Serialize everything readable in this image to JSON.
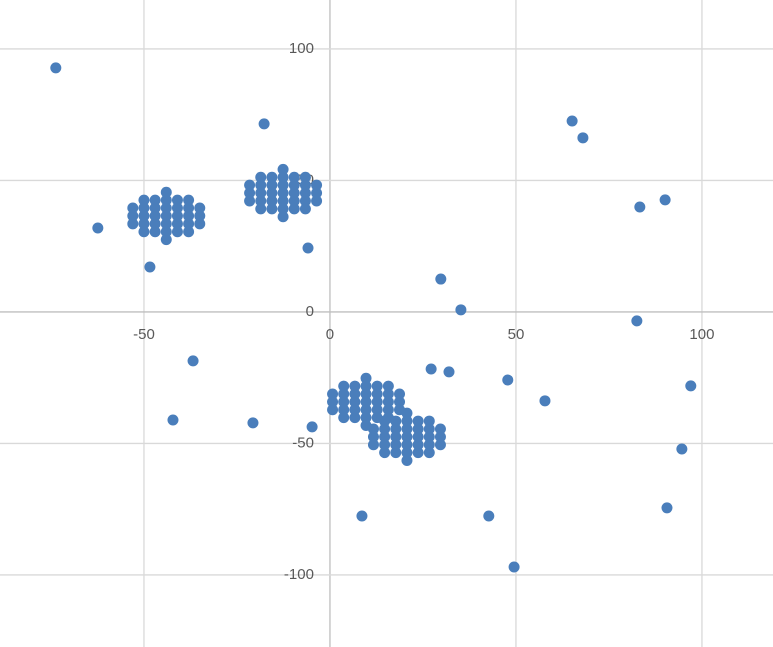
{
  "chart_data": {
    "type": "scatter",
    "color": "#4a7ebb",
    "xlim": [
      -88.7,
      119.1
    ],
    "ylim": [
      -127.4,
      118.6
    ],
    "xticks": [
      -50,
      0,
      50,
      100
    ],
    "yticks": [
      -100,
      -50,
      0,
      50,
      100
    ],
    "grid": true,
    "x": [
      -44,
      -50,
      -47,
      -44,
      -41,
      -38,
      -53,
      -50,
      -47,
      -44,
      -41,
      -38,
      -35,
      -53,
      -50,
      -47,
      -44,
      -41,
      -38,
      -35,
      -53,
      -50,
      -47,
      -44,
      -41,
      -38,
      -35,
      -50,
      -47,
      -44,
      -41,
      -38,
      -44,
      -12.6,
      -18.6,
      -15.6,
      -12.6,
      -9.6,
      -6.6,
      -21.6,
      -18.6,
      -15.6,
      -12.6,
      -9.6,
      -6.6,
      -3.6,
      -21.6,
      -18.6,
      -15.6,
      -12.6,
      -9.6,
      -6.6,
      -3.6,
      -21.6,
      -18.6,
      -15.6,
      -12.6,
      -9.6,
      -6.6,
      -3.6,
      -18.6,
      -15.6,
      -12.6,
      -9.6,
      -6.6,
      -12.6,
      9.7,
      3.7,
      6.7,
      9.7,
      12.7,
      15.7,
      0.7,
      3.7,
      6.7,
      9.7,
      12.7,
      15.7,
      18.7,
      0.7,
      3.7,
      6.7,
      9.7,
      12.7,
      15.7,
      18.7,
      0.7,
      3.7,
      6.7,
      9.7,
      12.7,
      15.7,
      18.7,
      3.7,
      6.7,
      9.7,
      12.7,
      15.7,
      9.7,
      20.7,
      14.7,
      17.7,
      20.7,
      23.7,
      26.7,
      11.7,
      14.7,
      17.7,
      20.7,
      23.7,
      26.7,
      29.7,
      11.7,
      14.7,
      17.7,
      20.7,
      23.7,
      26.7,
      29.7,
      11.7,
      14.7,
      17.7,
      20.7,
      23.7,
      26.7,
      29.7,
      14.7,
      17.7,
      20.7,
      23.7,
      26.7,
      20.7,
      -73.7,
      -17.7,
      -62.4,
      -48.4,
      -5.9,
      -36.8,
      -42.2,
      -20.7,
      -4.8,
      8.6,
      29.8,
      35.2,
      27.2,
      32.0,
      47.8,
      57.8,
      42.7,
      49.5,
      65.1,
      68.0,
      83.3,
      90.1,
      82.5,
      97.0,
      94.6,
      90.6
    ],
    "values": [
      27.5,
      30.5,
      30.5,
      30.5,
      30.5,
      30.5,
      33.5,
      33.5,
      33.5,
      33.5,
      33.5,
      33.5,
      33.5,
      36.5,
      36.5,
      36.5,
      36.5,
      36.5,
      36.5,
      36.5,
      39.5,
      39.5,
      39.5,
      39.5,
      39.5,
      39.5,
      39.5,
      42.5,
      42.5,
      42.5,
      42.5,
      42.5,
      45.5,
      36.2,
      39.2,
      39.2,
      39.2,
      39.2,
      39.2,
      42.2,
      42.2,
      42.2,
      42.2,
      42.2,
      42.2,
      42.2,
      45.2,
      45.2,
      45.2,
      45.2,
      45.2,
      45.2,
      45.2,
      48.2,
      48.2,
      48.2,
      48.2,
      48.2,
      48.2,
      48.2,
      51.2,
      51.2,
      51.2,
      51.2,
      51.2,
      54.2,
      -43.2,
      -40.2,
      -40.2,
      -40.2,
      -40.2,
      -40.2,
      -37.2,
      -37.2,
      -37.2,
      -37.2,
      -37.2,
      -37.2,
      -37.2,
      -34.2,
      -34.2,
      -34.2,
      -34.2,
      -34.2,
      -34.2,
      -34.2,
      -31.2,
      -31.2,
      -31.2,
      -31.2,
      -31.2,
      -31.2,
      -31.2,
      -28.2,
      -28.2,
      -28.2,
      -28.2,
      -28.2,
      -25.2,
      -56.5,
      -53.5,
      -53.5,
      -53.5,
      -53.5,
      -53.5,
      -50.5,
      -50.5,
      -50.5,
      -50.5,
      -50.5,
      -50.5,
      -50.5,
      -47.5,
      -47.5,
      -47.5,
      -47.5,
      -47.5,
      -47.5,
      -47.5,
      -44.5,
      -44.5,
      -44.5,
      -44.5,
      -44.5,
      -44.5,
      -44.5,
      -41.5,
      -41.5,
      -41.5,
      -41.5,
      -41.5,
      -38.5,
      92.8,
      71.5,
      31.9,
      17.1,
      24.3,
      -18.6,
      -41.1,
      -42.2,
      -43.7,
      -77.6,
      12.5,
      0.8,
      -21.7,
      -22.8,
      -25.9,
      -33.8,
      -77.6,
      -97.0,
      72.6,
      66.2,
      39.9,
      42.6,
      -3.4,
      -28.1,
      -52.1,
      -74.5
    ]
  }
}
